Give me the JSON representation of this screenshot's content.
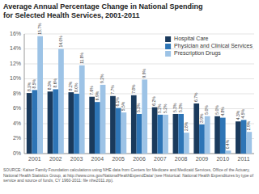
{
  "chart_data": {
    "type": "bar",
    "title": "Average Annual Percentage Change in National Spending",
    "subtitle": "for Selected Health Services, 2001-2011",
    "annotations": [
      "SOURCE: Kaiser Family Foundation calculations using NHE data from Centers for Medicare and Medicaid Services, Office of the Actuary, National Health Statistics Group, at http://www.cms.gov/NationalHealthExpendData/ (see Historical: National Health Expenditures by type of service and source of funds, CY 1960-2011: file nhe2011.zip)."
    ],
    "categories": [
      "2001",
      "2002",
      "2003",
      "2004",
      "2005",
      "2006",
      "2007",
      "2008",
      "2009",
      "2010",
      "2011"
    ],
    "series": [
      {
        "name": "Hospital Care",
        "color": "#1a3a5c",
        "values": [
          8.1,
          8.3,
          8.2,
          7.6,
          7.7,
          7.8,
          6.2,
          5.3,
          6.7,
          5.0,
          4.3
        ],
        "value_labels": [
          "8.1%",
          "8.3%",
          "8.2%",
          "7.6%",
          "7.7%",
          "7.8%",
          "6.2%",
          "5.3%",
          "6.7%",
          "5.0%",
          "4.3%"
        ]
      },
      {
        "name": "Physician and Clinical Services",
        "color": "#2e75b6",
        "values": [
          8.5,
          8.6,
          8.0,
          6.9,
          6.1,
          5.3,
          5.2,
          5.3,
          3.9,
          4.8,
          4.5
        ],
        "value_labels": [
          "8.5%",
          "8.6%",
          "8.0%",
          "6.9%",
          "6.1%",
          "5.3%",
          "5.2%",
          "5.3%",
          "3.9%",
          "4.8%",
          "4.5%"
        ]
      },
      {
        "name": "Prescription Drugs",
        "color": "#9dc3e6",
        "values": [
          15.7,
          14.0,
          11.8,
          9.2,
          5.5,
          9.9,
          5.2,
          2.8,
          5.0,
          0.4,
          2.9
        ],
        "value_labels": [
          "15.7%",
          "14.0%",
          "11.8%",
          "9.2%",
          "5.5%",
          "9.9%",
          "5.2%",
          "2.8%",
          "5.0%",
          "0.4%",
          "2.9%"
        ]
      }
    ],
    "ylim": [
      0,
      16
    ],
    "yticks": [
      {
        "value": 0,
        "label": "0%"
      },
      {
        "value": 2,
        "label": "2%"
      },
      {
        "value": 4,
        "label": "4%"
      },
      {
        "value": 6,
        "label": "6%"
      },
      {
        "value": 8,
        "label": "8%"
      },
      {
        "value": 10,
        "label": "10%"
      },
      {
        "value": 12,
        "label": "12%"
      },
      {
        "value": 14,
        "label": "14%"
      },
      {
        "value": 16,
        "label": "16%"
      }
    ],
    "grid": true,
    "legend": "upper right",
    "data_labels": true
  }
}
